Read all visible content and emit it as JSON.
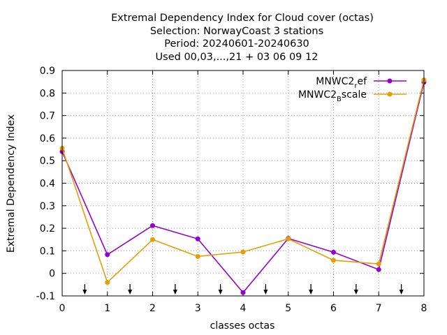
{
  "chart_data": {
    "type": "line",
    "title_lines": [
      "Extremal Dependency Index  for Cloud cover (octas)",
      "Selection: NorwayCoast       3 stations",
      "Period: 20240601-20240630",
      "Used 00,03,...,21 + 03 06 09 12"
    ],
    "xlabel": "classes octas",
    "ylabel": "Extremal Dependency Index",
    "x": [
      0,
      1,
      2,
      3,
      4,
      5,
      6,
      7,
      8
    ],
    "xlim": [
      0,
      8
    ],
    "ylim": [
      -0.1,
      0.9
    ],
    "xticks": [
      "0",
      "1",
      "2",
      "3",
      "4",
      "5",
      "6",
      "7",
      "8"
    ],
    "yticks": [
      "-0.1",
      "0",
      "0.1",
      "0.2",
      "0.3",
      "0.4",
      "0.5",
      "0.6",
      "0.7",
      "0.8",
      "0.9"
    ],
    "grid": true,
    "legend_position": "top-right",
    "series": [
      {
        "legend_base": "MNWC2",
        "legend_sub": "r",
        "legend_rest": "ef",
        "color": "#9400d3",
        "values": [
          0.54,
          0.083,
          0.212,
          0.153,
          -0.085,
          0.155,
          0.094,
          0.017,
          0.848
        ]
      },
      {
        "legend_base": "MNWC2",
        "legend_sub": "B",
        "legend_rest": "scale",
        "color": "#e69f00",
        "values": [
          0.555,
          -0.04,
          0.15,
          0.075,
          0.095,
          0.153,
          0.058,
          0.042,
          0.858
        ]
      }
    ],
    "arrow_x": [
      0.5,
      1.5,
      2.5,
      3.5,
      4.5,
      5.5,
      6.5,
      7.5
    ]
  }
}
